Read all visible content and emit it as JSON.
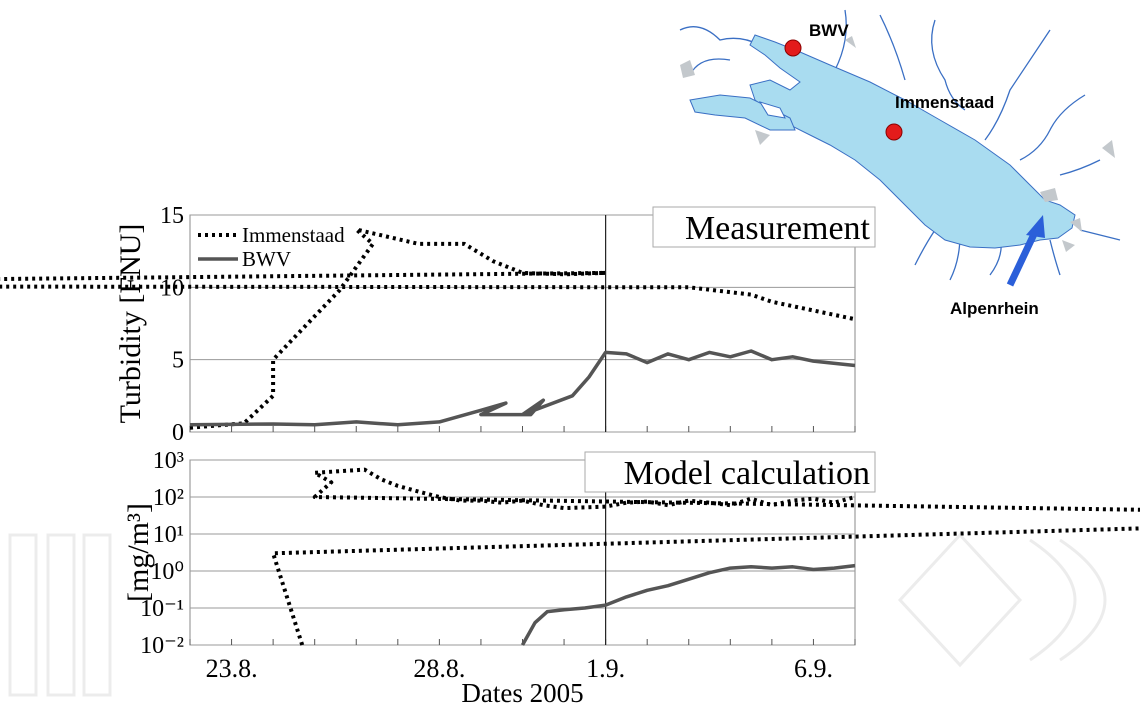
{
  "map": {
    "labels": {
      "bwv": "BWV",
      "immenstaad": "Immenstaad",
      "alpenrhein": "Alpenrhein"
    },
    "colors": {
      "lake": "#a9dcf0",
      "river": "#3a6fc4",
      "station": "#e31b1b",
      "arrow": "#2b5fd9"
    }
  },
  "chart_data": [
    {
      "type": "line",
      "panel_title": "Measurement",
      "ylabel": "Turbidity [FNU]",
      "xlabel": "",
      "ylim": [
        0,
        15
      ],
      "yticks": [
        "0",
        "5",
        "10",
        "15"
      ],
      "x_unit": "days",
      "x_range": [
        "22.8.",
        "7.9."
      ],
      "xticks": [
        "23.8.",
        "28.8.",
        "1.9.",
        "6.9."
      ],
      "vertical_marker": "1.9.",
      "grid": true,
      "legend": "top-left",
      "series": [
        {
          "name": "Immenstaad",
          "style": "dotted",
          "color": "#000000",
          "points": [
            [
              "22.8.",
              0.3
            ],
            [
              "23.3.",
              0.6
            ],
            [
              "24.0.",
              2.5
            ],
            [
              "24.8.",
              5.0
            ],
            [
              "25.6.",
              9.8
            ],
            [
              "26.4.",
              13.0
            ],
            [
              "26.8.",
              14.0
            ],
            [
              "27.5.",
              13.0
            ],
            [
              "28.6.",
              13.0
            ],
            [
              "29.3.",
              11.8
            ],
            [
              "30.0.",
              11.0
            ],
            [
              "31.0.",
              10.9
            ],
            [
              "1.9.",
              11.0
            ],
            [
              "1.8.",
              10.1
            ],
            [
              "3.0.",
              10.0
            ],
            [
              "4.5.",
              9.5
            ],
            [
              "5.9.",
              9.0
            ],
            [
              "7.0.",
              7.8
            ]
          ]
        },
        {
          "name": "BWV",
          "style": "solid",
          "color": "#555555",
          "points": [
            [
              "22.8.",
              0.5
            ],
            [
              "24.0.",
              0.55
            ],
            [
              "25.0.",
              0.5
            ],
            [
              "26.0.",
              0.7
            ],
            [
              "27.0.",
              0.5
            ],
            [
              "28.0.",
              0.7
            ],
            [
              "29.0.",
              1.5
            ],
            [
              "29.6.",
              2.0
            ],
            [
              "29.8.",
              1.2
            ],
            [
              "30.2.",
              1.2
            ],
            [
              "30.5.",
              2.2
            ],
            [
              "30.8.",
              1.2
            ],
            [
              "31.2.",
              2.5
            ],
            [
              "31.6.",
              3.8
            ],
            [
              "1.9.",
              5.5
            ],
            [
              "1.5.",
              5.4
            ],
            [
              "2.0.",
              4.8
            ],
            [
              "2.5.",
              5.4
            ],
            [
              "3.0.",
              5.0
            ],
            [
              "3.5.",
              5.5
            ],
            [
              "4.0.",
              5.2
            ],
            [
              "4.5.",
              5.6
            ],
            [
              "5.0.",
              5.0
            ],
            [
              "5.5.",
              5.2
            ],
            [
              "6.0.",
              4.9
            ],
            [
              "7.0.",
              4.6
            ]
          ]
        }
      ]
    },
    {
      "type": "line",
      "panel_title": "Model calculation",
      "ylabel": "[mg/m³]",
      "xlabel": "Dates 2005",
      "yscale": "log",
      "ylim": [
        0.01,
        1000
      ],
      "yticks": [
        "10⁻²",
        "10⁻¹",
        "10⁰",
        "10¹",
        "10²",
        "10³"
      ],
      "x_range": [
        "22.8.",
        "7.9."
      ],
      "xticks": [
        "23.8.",
        "28.8.",
        "1.9.",
        "6.9."
      ],
      "vertical_marker": "1.9.",
      "grid": true,
      "series": [
        {
          "name": "Immenstaad",
          "style": "dotted",
          "color": "#000000",
          "points": [
            [
              "24.7.",
              0.01
            ],
            [
              "24.8.",
              3.0
            ],
            [
              "24.9.",
              30
            ],
            [
              "25.0.",
              100
            ],
            [
              "25.4.",
              250
            ],
            [
              "25.8.",
              450
            ],
            [
              "26.2.",
              550
            ],
            [
              "26.6.",
              300
            ],
            [
              "27.0.",
              200
            ],
            [
              "27.5.",
              140
            ],
            [
              "28.0.",
              100
            ],
            [
              "28.5.",
              80
            ],
            [
              "29.0.",
              80
            ],
            [
              "29.5.",
              70
            ],
            [
              "30.0.",
              80
            ],
            [
              "30.5.",
              60
            ],
            [
              "31.0.",
              50
            ],
            [
              "1.9.",
              55
            ],
            [
              "1.5.",
              70
            ],
            [
              "2.0.",
              75
            ],
            [
              "2.5.",
              60
            ],
            [
              "3.0.",
              80
            ],
            [
              "3.5.",
              70
            ],
            [
              "4.0.",
              60
            ],
            [
              "4.5.",
              90
            ],
            [
              "5.0.",
              60
            ],
            [
              "5.5.",
              80
            ],
            [
              "6.0.",
              90
            ],
            [
              "6.5.",
              70
            ],
            [
              "7.0.",
              100
            ]
          ]
        },
        {
          "name": "BWV",
          "style": "solid",
          "color": "#555555",
          "points": [
            [
              "30.0.",
              0.01
            ],
            [
              "30.3.",
              0.04
            ],
            [
              "30.6.",
              0.08
            ],
            [
              "31.0.",
              0.09
            ],
            [
              "31.5.",
              0.1
            ],
            [
              "1.9.",
              0.12
            ],
            [
              "1.5.",
              0.2
            ],
            [
              "2.0.",
              0.3
            ],
            [
              "2.5.",
              0.4
            ],
            [
              "3.0.",
              0.6
            ],
            [
              "3.5.",
              0.9
            ],
            [
              "4.0.",
              1.2
            ],
            [
              "4.5.",
              1.3
            ],
            [
              "5.0.",
              1.2
            ],
            [
              "5.5.",
              1.3
            ],
            [
              "6.0.",
              1.1
            ],
            [
              "6.5.",
              1.2
            ],
            [
              "7.0.",
              1.4
            ]
          ]
        }
      ]
    }
  ]
}
